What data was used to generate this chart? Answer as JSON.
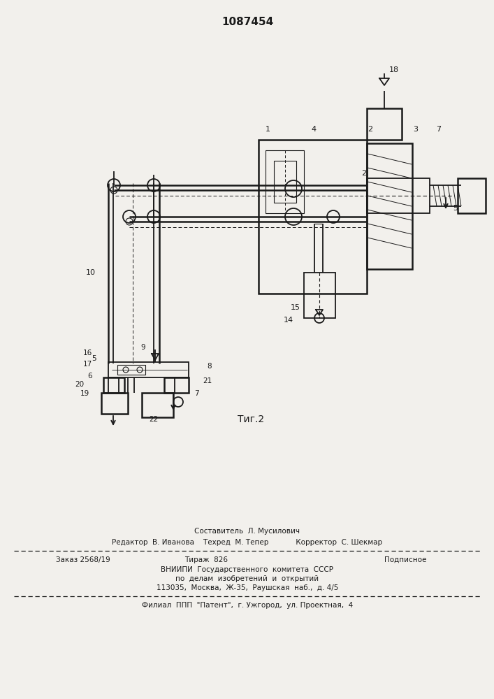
{
  "title": "1087454",
  "fig_label": "Τиг.2",
  "background_color": "#f2f0ec",
  "line_color": "#1a1a1a",
  "footer_line0": "Составитель  Л. Мусилович",
  "footer_line1": "Редактор  В. Иванова    Техред  М. Тепер            Корректор  С. Шекмар",
  "footer_line2a": "Заказ 2568/19",
  "footer_line2b": "Тираж  826",
  "footer_line2c": "Подписное",
  "footer_line3": "ВНИИПИ  Государственного  комитета  СССР",
  "footer_line4": "по  делам  изобретений  и  открытий",
  "footer_line5": "113035,  Москва,  Ж-35,  Раушская  наб.,  д. 4/5",
  "footer_line6": "Филиал  ППП  \"Патент\",  г. Ужгород,  ул. Проектная,  4"
}
